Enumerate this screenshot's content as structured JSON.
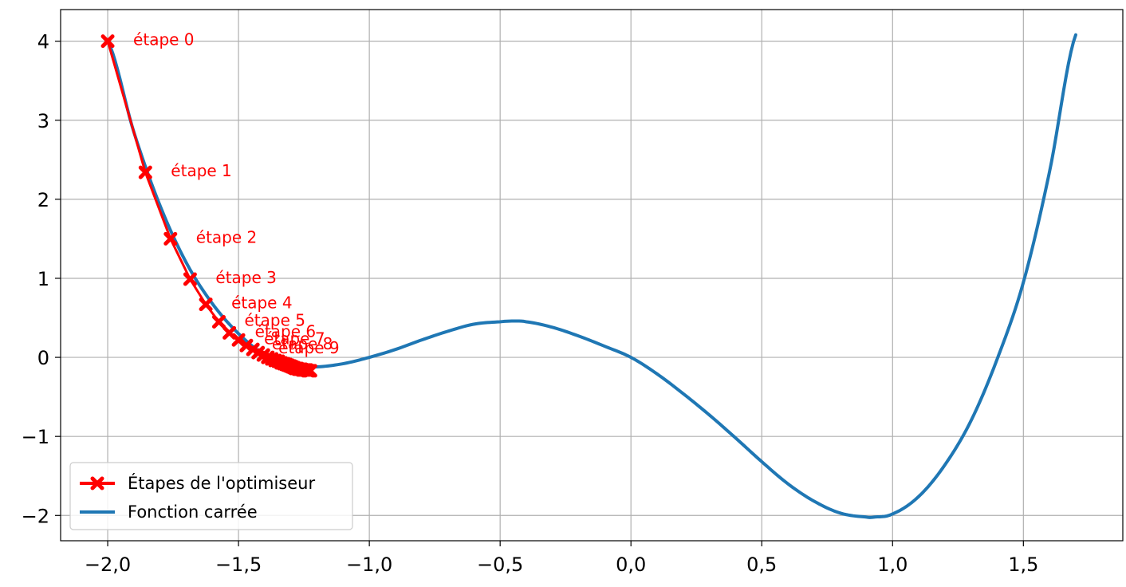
{
  "chart_data": {
    "type": "line",
    "title": "",
    "xlabel": "",
    "ylabel": "",
    "xlim": [
      -2.18,
      1.88
    ],
    "ylim": [
      -2.32,
      4.4
    ],
    "grid": true,
    "legend_position": "bottom-left",
    "x_ticks": [
      {
        "value": -2.0,
        "label": "−2,0"
      },
      {
        "value": -1.5,
        "label": "−1,5"
      },
      {
        "value": -1.0,
        "label": "−1,0"
      },
      {
        "value": -0.5,
        "label": "−0,5"
      },
      {
        "value": 0.0,
        "label": "0,0"
      },
      {
        "value": 0.5,
        "label": "0,5"
      },
      {
        "value": 1.0,
        "label": "1,0"
      },
      {
        "value": 1.5,
        "label": "1,5"
      }
    ],
    "y_ticks": [
      {
        "value": -2,
        "label": "−2"
      },
      {
        "value": -1,
        "label": "−1"
      },
      {
        "value": 0,
        "label": "0"
      },
      {
        "value": 1,
        "label": "1"
      },
      {
        "value": 2,
        "label": "2"
      },
      {
        "value": 3,
        "label": "3"
      },
      {
        "value": 4,
        "label": "4"
      }
    ],
    "series": [
      {
        "name": "Étapes de l'optimiseur",
        "color": "#ff0000",
        "marker": "X",
        "x": [
          -2.0,
          -1.856,
          -1.76,
          -1.685,
          -1.625,
          -1.575,
          -1.535,
          -1.5,
          -1.47,
          -1.445,
          -1.425,
          -1.405,
          -1.388,
          -1.373,
          -1.36,
          -1.348,
          -1.337,
          -1.327,
          -1.318,
          -1.31,
          -1.302,
          -1.295,
          -1.288,
          -1.282,
          -1.276,
          -1.27,
          -1.265,
          -1.26,
          -1.255,
          -1.25,
          -1.245,
          -1.24,
          -1.235,
          -1.23,
          -1.225
        ],
        "y": [
          4.0,
          2.34,
          1.5,
          0.99,
          0.67,
          0.45,
          0.31,
          0.22,
          0.15,
          0.1,
          0.06,
          0.03,
          0.0,
          -0.02,
          -0.04,
          -0.05,
          -0.07,
          -0.08,
          -0.09,
          -0.1,
          -0.11,
          -0.12,
          -0.13,
          -0.14,
          -0.14,
          -0.15,
          -0.15,
          -0.15,
          -0.16,
          -0.16,
          -0.16,
          -0.16,
          -0.17,
          -0.17,
          -0.17
        ]
      },
      {
        "name": "Fonction carrée",
        "color": "#1f77b4",
        "function": "x^4 - 2x^2 + ((x + 2)^2 - 8) / 4 approx",
        "x_range": [
          -2.0,
          1.7
        ]
      }
    ],
    "annotations": [
      {
        "text": "étape 0",
        "x": -2.0,
        "y": 4.0
      },
      {
        "text": "étape 1",
        "x": -1.856,
        "y": 2.34
      },
      {
        "text": "étape 2",
        "x": -1.76,
        "y": 1.5
      },
      {
        "text": "étape 3",
        "x": -1.685,
        "y": 0.99
      },
      {
        "text": "étape 4",
        "x": -1.625,
        "y": 0.67
      },
      {
        "text": "étape 5",
        "x": -1.575,
        "y": 0.45
      },
      {
        "text": "étape 6",
        "x": -1.535,
        "y": 0.31
      },
      {
        "text": "étape 7",
        "x": -1.5,
        "y": 0.22
      },
      {
        "text": "étape 8",
        "x": -1.47,
        "y": 0.15
      },
      {
        "text": "étape 9",
        "x": -1.445,
        "y": 0.1
      }
    ],
    "legend": [
      {
        "label": "Étapes de l'optimiseur",
        "color": "#ff0000"
      },
      {
        "label": "Fonction carrée",
        "color": "#1f77b4"
      }
    ]
  }
}
